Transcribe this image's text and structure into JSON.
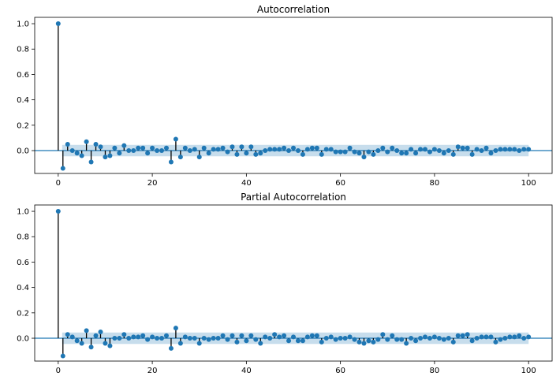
{
  "chart_data": [
    {
      "type": "stem",
      "title": "Autocorrelation",
      "xlabel": "",
      "ylabel": "",
      "xlim": [
        -5,
        105
      ],
      "ylim": [
        -0.18,
        1.05
      ],
      "xticks": [
        0,
        20,
        40,
        60,
        80,
        100
      ],
      "yticks": [
        0.0,
        0.2,
        0.4,
        0.6,
        0.8,
        1.0
      ],
      "ytick_labels": [
        "0.0",
        "0.2",
        "0.4",
        "0.6",
        "0.8",
        "1.0"
      ],
      "confidence_band": 0.045,
      "grid": false,
      "colors": {
        "marker": "#1f77b4",
        "stem": "#000000",
        "band": "#1f77b4",
        "zero_line": "#1f77b4"
      },
      "x": [
        0,
        1,
        2,
        3,
        4,
        5,
        6,
        7,
        8,
        9,
        10,
        11,
        12,
        13,
        14,
        15,
        16,
        17,
        18,
        19,
        20,
        21,
        22,
        23,
        24,
        25,
        26,
        27,
        28,
        29,
        30,
        31,
        32,
        33,
        34,
        35,
        36,
        37,
        38,
        39,
        40,
        41,
        42,
        43,
        44,
        45,
        46,
        47,
        48,
        49,
        50,
        51,
        52,
        53,
        54,
        55,
        56,
        57,
        58,
        59,
        60,
        61,
        62,
        63,
        64,
        65,
        66,
        67,
        68,
        69,
        70,
        71,
        72,
        73,
        74,
        75,
        76,
        77,
        78,
        79,
        80,
        81,
        82,
        83,
        84,
        85,
        86,
        87,
        88,
        89,
        90,
        91,
        92,
        93,
        94,
        95,
        96,
        97,
        98,
        99,
        100
      ],
      "values": [
        1.0,
        -0.14,
        0.05,
        0.0,
        -0.02,
        -0.04,
        0.07,
        -0.09,
        0.05,
        0.03,
        -0.05,
        -0.04,
        0.02,
        -0.02,
        0.04,
        0.0,
        0.0,
        0.02,
        0.02,
        -0.02,
        0.02,
        0.0,
        0.0,
        0.02,
        -0.09,
        0.09,
        -0.05,
        0.02,
        0.0,
        0.01,
        -0.05,
        0.02,
        -0.02,
        0.01,
        0.01,
        0.02,
        -0.01,
        0.03,
        -0.03,
        0.03,
        -0.02,
        0.03,
        -0.03,
        -0.02,
        0.0,
        0.01,
        0.01,
        0.01,
        0.02,
        0.0,
        0.02,
        0.0,
        -0.03,
        0.01,
        0.02,
        0.02,
        -0.03,
        0.01,
        0.01,
        -0.01,
        -0.01,
        -0.01,
        0.02,
        -0.01,
        -0.02,
        -0.05,
        -0.01,
        -0.03,
        0.0,
        0.02,
        -0.01,
        0.02,
        0.0,
        -0.02,
        -0.02,
        0.01,
        -0.02,
        0.01,
        0.01,
        -0.01,
        0.01,
        0.0,
        -0.02,
        0.0,
        -0.03,
        0.03,
        0.02,
        0.02,
        -0.03,
        0.01,
        0.0,
        0.02,
        -0.02,
        0.0,
        0.01,
        0.01,
        0.01,
        0.01,
        0.0,
        0.01,
        0.01
      ]
    },
    {
      "type": "stem",
      "title": "Partial Autocorrelation",
      "xlabel": "",
      "ylabel": "",
      "xlim": [
        -5,
        105
      ],
      "ylim": [
        -0.18,
        1.05
      ],
      "xticks": [
        0,
        20,
        40,
        60,
        80,
        100
      ],
      "yticks": [
        0.0,
        0.2,
        0.4,
        0.6,
        0.8,
        1.0
      ],
      "ytick_labels": [
        "0.0",
        "0.2",
        "0.4",
        "0.6",
        "0.8",
        "1.0"
      ],
      "confidence_band": 0.045,
      "grid": false,
      "colors": {
        "marker": "#1f77b4",
        "stem": "#000000",
        "band": "#1f77b4",
        "zero_line": "#1f77b4"
      },
      "x": [
        0,
        1,
        2,
        3,
        4,
        5,
        6,
        7,
        8,
        9,
        10,
        11,
        12,
        13,
        14,
        15,
        16,
        17,
        18,
        19,
        20,
        21,
        22,
        23,
        24,
        25,
        26,
        27,
        28,
        29,
        30,
        31,
        32,
        33,
        34,
        35,
        36,
        37,
        38,
        39,
        40,
        41,
        42,
        43,
        44,
        45,
        46,
        47,
        48,
        49,
        50,
        51,
        52,
        53,
        54,
        55,
        56,
        57,
        58,
        59,
        60,
        61,
        62,
        63,
        64,
        65,
        66,
        67,
        68,
        69,
        70,
        71,
        72,
        73,
        74,
        75,
        76,
        77,
        78,
        79,
        80,
        81,
        82,
        83,
        84,
        85,
        86,
        87,
        88,
        89,
        90,
        91,
        92,
        93,
        94,
        95,
        96,
        97,
        98,
        99,
        100
      ],
      "values": [
        1.0,
        -0.14,
        0.03,
        0.01,
        -0.02,
        -0.04,
        0.06,
        -0.07,
        0.02,
        0.05,
        -0.04,
        -0.06,
        0.0,
        0.0,
        0.03,
        0.0,
        0.01,
        0.01,
        0.02,
        -0.01,
        0.01,
        0.0,
        0.0,
        0.02,
        -0.08,
        0.08,
        -0.04,
        0.01,
        0.0,
        0.0,
        -0.04,
        0.0,
        -0.01,
        0.0,
        0.0,
        0.02,
        -0.01,
        0.02,
        -0.03,
        0.02,
        -0.02,
        0.02,
        -0.01,
        -0.04,
        0.01,
        0.0,
        0.03,
        0.01,
        0.02,
        -0.02,
        0.01,
        -0.02,
        -0.02,
        0.01,
        0.02,
        0.02,
        -0.03,
        0.0,
        0.01,
        -0.01,
        0.0,
        0.0,
        0.01,
        -0.01,
        -0.03,
        -0.04,
        -0.02,
        -0.03,
        -0.01,
        0.03,
        -0.01,
        0.02,
        -0.01,
        -0.01,
        -0.04,
        0.0,
        -0.02,
        0.0,
        0.01,
        0.0,
        0.01,
        0.0,
        -0.01,
        0.0,
        -0.03,
        0.02,
        0.02,
        0.03,
        -0.02,
        0.0,
        0.01,
        0.01,
        0.01,
        -0.03,
        -0.01,
        0.0,
        0.01,
        0.01,
        0.02,
        0.0,
        0.01
      ]
    }
  ]
}
